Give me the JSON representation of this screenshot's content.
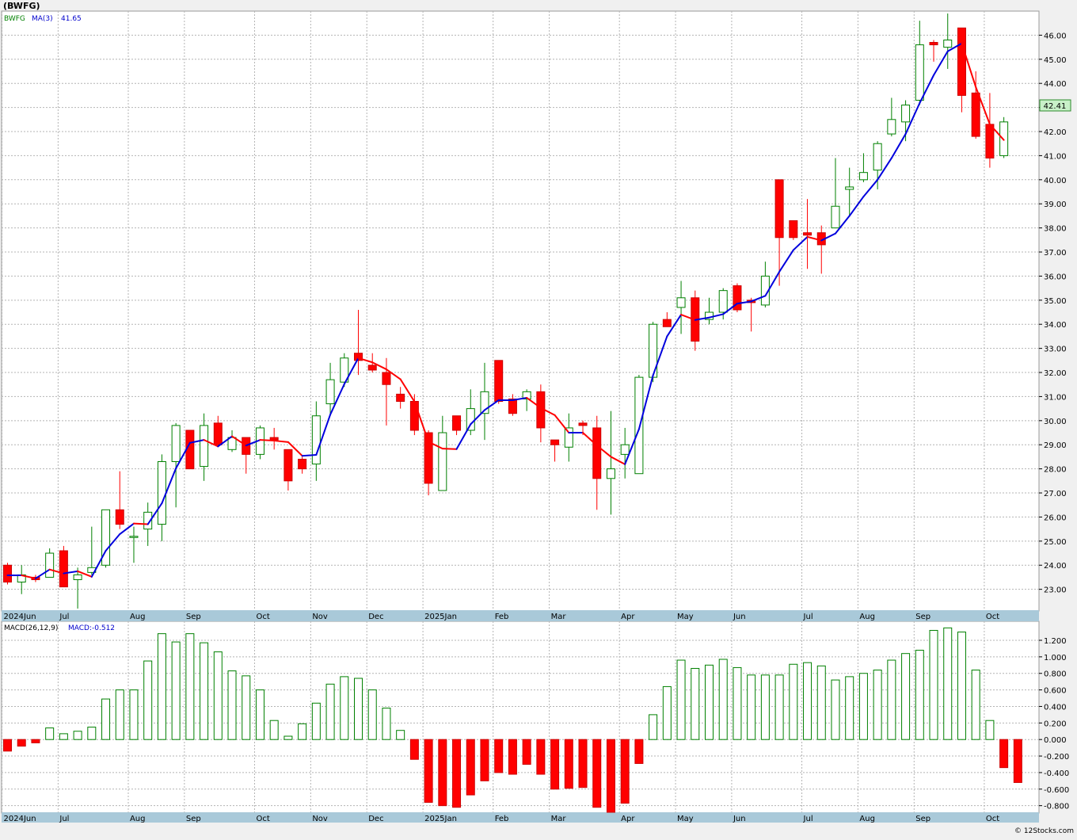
{
  "title": "(BWFG)",
  "copyright": "© 12Stocks.com",
  "price_panel": {
    "symbol": "BWFG",
    "ma_label": "MA(3)",
    "ma_value": "41.65",
    "last_price": "42.41"
  },
  "macd_panel": {
    "label": "MACD(26,12,9)",
    "value_label": "MACD:-0.512"
  },
  "colors": {
    "up_candle": "#008000",
    "down_candle": "#ff0000",
    "ma_rising": "#0000dd",
    "ma_falling": "#ff0000",
    "grid": "#b4b4b4",
    "axis_band": "#a9c9d9",
    "last_price_box": "#c8f0c8"
  },
  "x_axis_labels": [
    {
      "text": "2024Jun",
      "week": 0
    },
    {
      "text": "Jul",
      "week": 4
    },
    {
      "text": "Aug",
      "week": 9
    },
    {
      "text": "Sep",
      "week": 13
    },
    {
      "text": "Oct",
      "week": 18
    },
    {
      "text": "Nov",
      "week": 22
    },
    {
      "text": "Dec",
      "week": 26
    },
    {
      "text": "2025Jan",
      "week": 30
    },
    {
      "text": "Feb",
      "week": 35
    },
    {
      "text": "Mar",
      "week": 39
    },
    {
      "text": "Apr",
      "week": 44
    },
    {
      "text": "May",
      "week": 48
    },
    {
      "text": "Jun",
      "week": 52
    },
    {
      "text": "Jul",
      "week": 57
    },
    {
      "text": "Aug",
      "week": 61
    },
    {
      "text": "Sep",
      "week": 65
    },
    {
      "text": "Oct",
      "week": 70
    }
  ],
  "chart_data": [
    {
      "type": "candlestick",
      "title": "BWFG weekly",
      "frequency": "weekly",
      "ylim": [
        22.1,
        47.0
      ],
      "yticks": [
        23,
        24,
        25,
        26,
        27,
        28,
        29,
        30,
        31,
        32,
        33,
        34,
        35,
        36,
        37,
        38,
        39,
        40,
        41,
        42,
        43,
        44,
        45,
        46
      ],
      "grid": true,
      "candles": [
        {
          "o": 24.0,
          "h": 24.1,
          "l": 23.2,
          "c": 23.3
        },
        {
          "o": 23.3,
          "h": 24.0,
          "l": 22.8,
          "c": 23.6
        },
        {
          "o": 23.5,
          "h": 23.6,
          "l": 23.3,
          "c": 23.4
        },
        {
          "o": 23.5,
          "h": 24.7,
          "l": 23.5,
          "c": 24.5
        },
        {
          "o": 24.6,
          "h": 24.8,
          "l": 23.1,
          "c": 23.1
        },
        {
          "o": 23.4,
          "h": 23.9,
          "l": 22.2,
          "c": 23.6
        },
        {
          "o": 23.7,
          "h": 25.6,
          "l": 23.6,
          "c": 23.9
        },
        {
          "o": 24.0,
          "h": 26.3,
          "l": 23.9,
          "c": 26.3
        },
        {
          "o": 26.3,
          "h": 27.9,
          "l": 25.5,
          "c": 25.7
        },
        {
          "o": 25.2,
          "h": 25.6,
          "l": 24.1,
          "c": 25.2
        },
        {
          "o": 25.5,
          "h": 26.6,
          "l": 24.8,
          "c": 26.2
        },
        {
          "o": 25.7,
          "h": 28.6,
          "l": 25.0,
          "c": 28.3
        },
        {
          "o": 28.3,
          "h": 29.9,
          "l": 26.4,
          "c": 29.8
        },
        {
          "o": 29.6,
          "h": 29.6,
          "l": 28.0,
          "c": 28.0
        },
        {
          "o": 28.1,
          "h": 30.3,
          "l": 27.5,
          "c": 29.8
        },
        {
          "o": 29.9,
          "h": 30.2,
          "l": 28.9,
          "c": 29.0
        },
        {
          "o": 28.8,
          "h": 29.6,
          "l": 28.7,
          "c": 29.3
        },
        {
          "o": 29.3,
          "h": 29.3,
          "l": 27.8,
          "c": 28.6
        },
        {
          "o": 28.6,
          "h": 29.8,
          "l": 28.4,
          "c": 29.7
        },
        {
          "o": 29.3,
          "h": 29.7,
          "l": 28.8,
          "c": 29.2
        },
        {
          "o": 28.8,
          "h": 28.8,
          "l": 27.1,
          "c": 27.5
        },
        {
          "o": 28.4,
          "h": 28.5,
          "l": 27.8,
          "c": 28.0
        },
        {
          "o": 28.2,
          "h": 30.8,
          "l": 27.5,
          "c": 30.2
        },
        {
          "o": 30.7,
          "h": 32.4,
          "l": 30.2,
          "c": 31.7
        },
        {
          "o": 31.6,
          "h": 32.8,
          "l": 31.4,
          "c": 32.6
        },
        {
          "o": 32.8,
          "h": 34.6,
          "l": 31.9,
          "c": 32.5
        },
        {
          "o": 32.3,
          "h": 32.8,
          "l": 32.0,
          "c": 32.1
        },
        {
          "o": 32.0,
          "h": 32.6,
          "l": 29.8,
          "c": 31.5
        },
        {
          "o": 31.1,
          "h": 31.4,
          "l": 30.5,
          "c": 30.8
        },
        {
          "o": 30.8,
          "h": 31.1,
          "l": 29.4,
          "c": 29.6
        },
        {
          "o": 29.5,
          "h": 29.6,
          "l": 26.9,
          "c": 27.4
        },
        {
          "o": 27.1,
          "h": 30.2,
          "l": 27.1,
          "c": 29.5
        },
        {
          "o": 30.2,
          "h": 30.2,
          "l": 29.4,
          "c": 29.6
        },
        {
          "o": 29.6,
          "h": 31.3,
          "l": 29.4,
          "c": 30.5
        },
        {
          "o": 30.3,
          "h": 32.4,
          "l": 29.2,
          "c": 31.2
        },
        {
          "o": 32.5,
          "h": 32.5,
          "l": 30.7,
          "c": 30.8
        },
        {
          "o": 30.9,
          "h": 31.1,
          "l": 30.2,
          "c": 30.3
        },
        {
          "o": 30.9,
          "h": 31.3,
          "l": 30.4,
          "c": 31.2
        },
        {
          "o": 31.2,
          "h": 31.5,
          "l": 29.1,
          "c": 29.7
        },
        {
          "o": 29.2,
          "h": 29.2,
          "l": 28.3,
          "c": 29.0
        },
        {
          "o": 28.9,
          "h": 30.3,
          "l": 28.3,
          "c": 29.7
        },
        {
          "o": 29.9,
          "h": 30.0,
          "l": 29.4,
          "c": 29.8
        },
        {
          "o": 29.7,
          "h": 30.2,
          "l": 26.3,
          "c": 27.6
        },
        {
          "o": 27.6,
          "h": 30.4,
          "l": 26.1,
          "c": 28.0
        },
        {
          "o": 28.6,
          "h": 29.7,
          "l": 27.6,
          "c": 29.0
        },
        {
          "o": 27.8,
          "h": 31.9,
          "l": 27.8,
          "c": 31.8
        },
        {
          "o": 31.8,
          "h": 34.1,
          "l": 31.6,
          "c": 34.0
        },
        {
          "o": 34.2,
          "h": 34.5,
          "l": 33.9,
          "c": 33.9
        },
        {
          "o": 34.7,
          "h": 35.8,
          "l": 33.6,
          "c": 35.1
        },
        {
          "o": 35.1,
          "h": 35.4,
          "l": 32.9,
          "c": 33.3
        },
        {
          "o": 34.2,
          "h": 35.1,
          "l": 34.0,
          "c": 34.5
        },
        {
          "o": 34.5,
          "h": 35.5,
          "l": 34.2,
          "c": 35.4
        },
        {
          "o": 35.6,
          "h": 35.7,
          "l": 34.5,
          "c": 34.6
        },
        {
          "o": 35.0,
          "h": 35.1,
          "l": 33.7,
          "c": 34.9
        },
        {
          "o": 34.8,
          "h": 36.6,
          "l": 34.7,
          "c": 36.0
        },
        {
          "o": 40.0,
          "h": 40.0,
          "l": 35.6,
          "c": 37.6
        },
        {
          "o": 38.3,
          "h": 38.3,
          "l": 37.5,
          "c": 37.6
        },
        {
          "o": 37.8,
          "h": 39.2,
          "l": 36.3,
          "c": 37.7
        },
        {
          "o": 37.8,
          "h": 38.1,
          "l": 36.1,
          "c": 37.3
        },
        {
          "o": 38.0,
          "h": 40.9,
          "l": 38.0,
          "c": 38.9
        },
        {
          "o": 39.6,
          "h": 40.5,
          "l": 38.5,
          "c": 39.7
        },
        {
          "o": 40.0,
          "h": 41.1,
          "l": 39.9,
          "c": 40.3
        },
        {
          "o": 40.4,
          "h": 41.6,
          "l": 39.6,
          "c": 41.5
        },
        {
          "o": 41.9,
          "h": 43.4,
          "l": 41.8,
          "c": 42.5
        },
        {
          "o": 42.4,
          "h": 43.3,
          "l": 41.6,
          "c": 43.1
        },
        {
          "o": 43.3,
          "h": 46.6,
          "l": 43.1,
          "c": 45.6
        },
        {
          "o": 45.7,
          "h": 45.8,
          "l": 44.9,
          "c": 45.6
        },
        {
          "o": 45.5,
          "h": 46.9,
          "l": 44.6,
          "c": 45.8
        },
        {
          "o": 46.3,
          "h": 46.3,
          "l": 42.8,
          "c": 43.5
        },
        {
          "o": 43.6,
          "h": 44.5,
          "l": 41.7,
          "c": 41.8
        },
        {
          "o": 42.3,
          "h": 43.6,
          "l": 40.5,
          "c": 40.9
        },
        {
          "o": 41.0,
          "h": 42.6,
          "l": 40.9,
          "c": 42.4
        }
      ]
    },
    {
      "type": "line",
      "title": "MA(3)",
      "start_week": 0,
      "values": [
        23.58,
        23.58,
        23.45,
        23.82,
        23.66,
        23.75,
        23.52,
        24.6,
        25.29,
        25.73,
        25.7,
        26.57,
        28.02,
        29.08,
        29.2,
        28.93,
        29.35,
        28.97,
        29.2,
        29.17,
        29.11,
        28.54,
        28.58,
        30.25,
        31.52,
        32.6,
        32.42,
        32.13,
        31.72,
        30.79,
        29.12,
        28.84,
        28.82,
        29.85,
        30.44,
        30.85,
        30.85,
        30.95,
        30.53,
        30.23,
        29.5,
        29.5,
        28.97,
        28.5,
        28.19,
        29.65,
        31.88,
        33.5,
        34.4,
        34.18,
        34.28,
        34.42,
        34.86,
        34.95,
        35.18,
        36.18,
        37.08,
        37.63,
        37.48,
        37.77,
        38.5,
        39.3,
        40.0,
        40.9,
        41.9,
        43.18,
        44.34,
        45.33,
        45.66,
        43.85,
        42.3,
        41.65
      ]
    },
    {
      "type": "bar",
      "title": "MACD(26,12,9)",
      "ylim": [
        -0.88,
        1.43
      ],
      "yticks": [
        -0.8,
        -0.6,
        -0.4,
        -0.2,
        0.0,
        0.2,
        0.4,
        0.6,
        0.8,
        1.0,
        1.2
      ],
      "values": [
        -0.14,
        -0.08,
        -0.04,
        0.14,
        0.07,
        0.1,
        0.15,
        0.49,
        0.6,
        0.6,
        0.95,
        1.28,
        1.18,
        1.28,
        1.17,
        1.06,
        0.83,
        0.77,
        0.6,
        0.23,
        0.04,
        0.19,
        0.44,
        0.67,
        0.76,
        0.74,
        0.6,
        0.38,
        0.11,
        -0.24,
        -0.76,
        -0.8,
        -0.82,
        -0.67,
        -0.5,
        -0.4,
        -0.42,
        -0.3,
        -0.42,
        -0.6,
        -0.59,
        -0.58,
        -0.82,
        -0.88,
        -0.77,
        -0.29,
        0.3,
        0.64,
        0.96,
        0.86,
        0.9,
        0.97,
        0.87,
        0.78,
        0.78,
        0.78,
        0.91,
        0.93,
        0.89,
        0.72,
        0.76,
        0.8,
        0.84,
        0.96,
        1.04,
        1.08,
        1.32,
        1.35,
        1.3,
        0.84,
        0.23,
        -0.34,
        -0.52
      ]
    }
  ]
}
